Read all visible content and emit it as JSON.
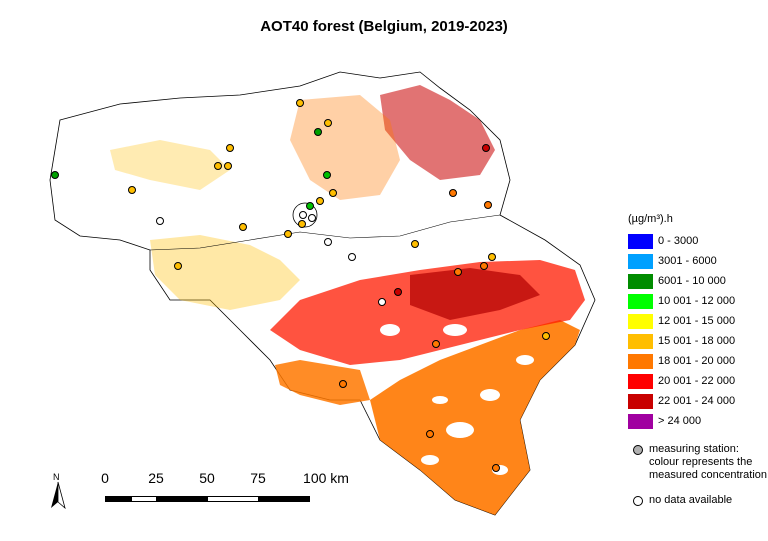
{
  "title": "AOT40 forest (Belgium, 2019-2023)",
  "legend": {
    "unit": "(µg/m³).h",
    "classes": [
      {
        "label": "0 - 3000",
        "color": "#0000ff"
      },
      {
        "label": "3001 - 6000",
        "color": "#00a0ff"
      },
      {
        "label": "6001 - 10 000",
        "color": "#008c00"
      },
      {
        "label": "10 001 - 12 000",
        "color": "#00ff00"
      },
      {
        "label": "12 001 - 15 000",
        "color": "#ffff00"
      },
      {
        "label": "15 001 - 18 000",
        "color": "#ffbe00"
      },
      {
        "label": "18 001 - 20 000",
        "color": "#ff7800"
      },
      {
        "label": "20 001 - 22 000",
        "color": "#ff0000"
      },
      {
        "label": "22 001 - 24 000",
        "color": "#c80000"
      },
      {
        "label": "> 24 000",
        "color": "#a000a0"
      }
    ],
    "station_note": "measuring station: colour represents the measured concentration",
    "nodata_note": "no data available"
  },
  "scale_bar": {
    "ticks": [
      "0",
      "25",
      "50",
      "75",
      "100 km"
    ]
  },
  "north_arrow": {
    "label": "N"
  }
}
